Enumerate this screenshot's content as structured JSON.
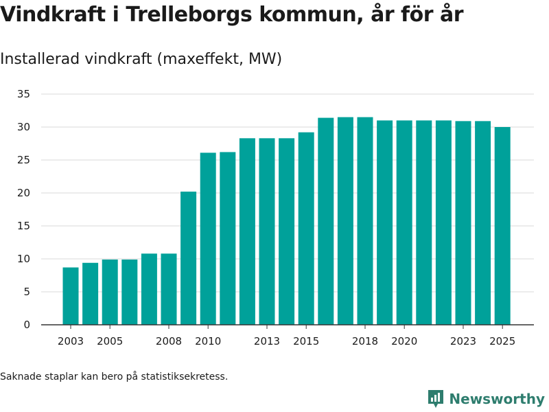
{
  "title": "Vindkraft i Trelleborgs kommun, år för år",
  "subtitle": "Installerad vindkraft (maxeffekt, MW)",
  "footnote": "Saknade staplar kan bero på statistiksekretess.",
  "brand": {
    "name": "Newsworthy",
    "icon": "newsworthy-logo-icon"
  },
  "colors": {
    "bar": "#00a19a",
    "grid": "#d9d9d9",
    "axis": "#333333",
    "brand": "#2e7d6e"
  },
  "chart_data": {
    "type": "bar",
    "title": "Vindkraft i Trelleborgs kommun, år för år",
    "ylabel": "Installerad vindkraft (maxeffekt, MW)",
    "xlabel": "",
    "categories": [
      2003,
      2004,
      2005,
      2006,
      2007,
      2008,
      2009,
      2010,
      2011,
      2012,
      2013,
      2014,
      2015,
      2016,
      2017,
      2018,
      2019,
      2020,
      2021,
      2022,
      2023,
      2024,
      2025
    ],
    "values": [
      8.7,
      9.4,
      9.9,
      9.9,
      10.8,
      10.8,
      20.2,
      26.1,
      26.2,
      28.3,
      28.3,
      28.3,
      29.2,
      31.4,
      31.5,
      31.5,
      31.0,
      31.0,
      31.0,
      31.0,
      30.9,
      30.9,
      30.0
    ],
    "x_tick_labels": [
      2003,
      2005,
      2008,
      2010,
      2013,
      2015,
      2018,
      2020,
      2023,
      2025
    ],
    "y_ticks": [
      0,
      5,
      10,
      15,
      20,
      25,
      30,
      35
    ],
    "ylim": [
      0,
      35
    ],
    "grid": true,
    "legend": "none"
  }
}
